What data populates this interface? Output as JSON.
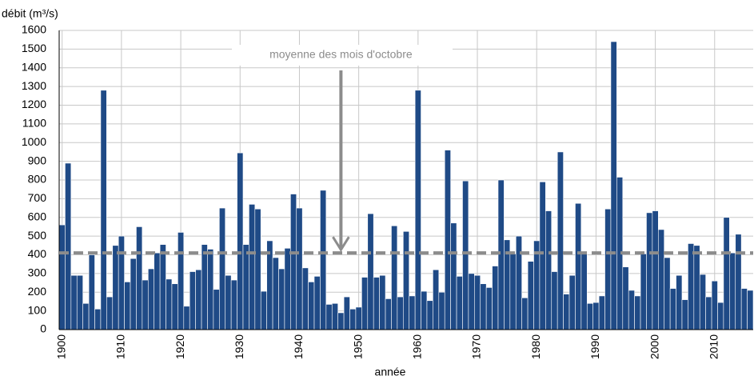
{
  "chart_data": {
    "type": "bar",
    "y_label": "débit (m³/s)",
    "x_label": "année",
    "color": "#1f4a86",
    "grid": true,
    "xlim": [
      1899.5,
      2016.5
    ],
    "ylim": [
      0,
      1600
    ],
    "xticks": [
      1900,
      1910,
      1920,
      1930,
      1940,
      1950,
      1960,
      1970,
      1980,
      1990,
      2000,
      2010
    ],
    "yticks": [
      0,
      100,
      200,
      300,
      400,
      500,
      600,
      700,
      800,
      900,
      1000,
      1100,
      1200,
      1300,
      1400,
      1500,
      1600
    ],
    "x": [
      1900,
      1901,
      1902,
      1903,
      1904,
      1905,
      1906,
      1907,
      1908,
      1909,
      1910,
      1911,
      1912,
      1913,
      1914,
      1915,
      1916,
      1917,
      1918,
      1919,
      1920,
      1921,
      1922,
      1923,
      1924,
      1925,
      1926,
      1927,
      1928,
      1929,
      1930,
      1931,
      1932,
      1933,
      1934,
      1935,
      1936,
      1937,
      1938,
      1939,
      1940,
      1941,
      1942,
      1943,
      1944,
      1945,
      1946,
      1947,
      1948,
      1949,
      1950,
      1951,
      1952,
      1953,
      1954,
      1955,
      1956,
      1957,
      1958,
      1959,
      1960,
      1961,
      1962,
      1963,
      1964,
      1965,
      1966,
      1967,
      1968,
      1969,
      1970,
      1971,
      1972,
      1973,
      1974,
      1975,
      1976,
      1977,
      1978,
      1979,
      1980,
      1981,
      1982,
      1983,
      1984,
      1985,
      1986,
      1987,
      1988,
      1989,
      1990,
      1991,
      1992,
      1993,
      1994,
      1995,
      1996,
      1997,
      1998,
      1999,
      2000,
      2001,
      2002,
      2003,
      2004,
      2005,
      2006,
      2007,
      2008,
      2009,
      2010,
      2011,
      2012,
      2013,
      2014,
      2015,
      2016
    ],
    "values": [
      560,
      890,
      290,
      290,
      140,
      400,
      110,
      1280,
      175,
      450,
      500,
      255,
      380,
      550,
      265,
      325,
      410,
      455,
      270,
      245,
      520,
      125,
      310,
      320,
      455,
      430,
      215,
      650,
      290,
      265,
      945,
      455,
      670,
      645,
      205,
      475,
      385,
      325,
      435,
      725,
      650,
      330,
      255,
      285,
      745,
      135,
      140,
      90,
      175,
      110,
      120,
      280,
      620,
      280,
      290,
      165,
      555,
      175,
      525,
      180,
      1280,
      205,
      155,
      320,
      200,
      960,
      570,
      285,
      795,
      300,
      290,
      245,
      225,
      340,
      800,
      480,
      405,
      500,
      170,
      365,
      475,
      790,
      635,
      310,
      950,
      190,
      290,
      675,
      410,
      140,
      145,
      180,
      645,
      1540,
      815,
      335,
      210,
      180,
      405,
      625,
      635,
      535,
      385,
      220,
      290,
      160,
      460,
      450,
      295,
      175,
      260,
      145,
      600,
      410,
      510,
      220,
      210
    ],
    "reference_line": 410,
    "reference_color": "#8c8c8c",
    "annotation": {
      "text": "moyenne des mois d'octobre",
      "x": 1947,
      "y": 410
    }
  }
}
